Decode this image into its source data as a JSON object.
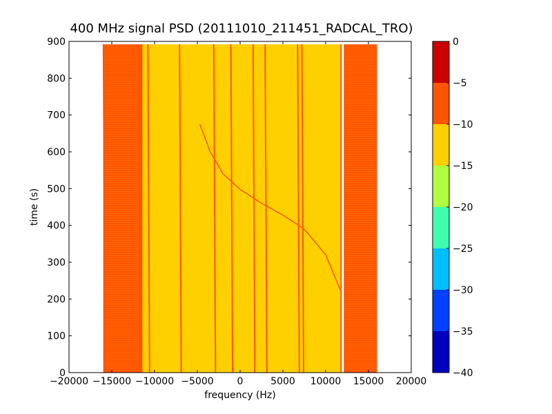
{
  "chart_data": {
    "type": "heatmap",
    "title": "400 MHz signal PSD (20111010_211451_RADCAL_TRO)",
    "xlabel": "frequency (Hz)",
    "ylabel": "time (s)",
    "xlim": [
      -20000,
      20000
    ],
    "ylim": [
      0,
      900
    ],
    "x_ticks": [
      -20000,
      -15000,
      -10000,
      -5000,
      0,
      5000,
      10000,
      15000,
      20000
    ],
    "x_tick_labels": [
      "−20000",
      "−15000",
      "−10000",
      "−5000",
      "0",
      "5000",
      "10000",
      "15000",
      "20000"
    ],
    "y_ticks": [
      0,
      100,
      200,
      300,
      400,
      500,
      600,
      700,
      800,
      900
    ],
    "y_tick_labels": [
      "0",
      "100",
      "200",
      "300",
      "400",
      "500",
      "600",
      "700",
      "800",
      "900"
    ],
    "data_extent": {
      "x": [
        -16000,
        16000
      ],
      "y": [
        0,
        892
      ]
    },
    "band_levels": [
      {
        "x_range": [
          -16000,
          -11500
        ],
        "level": "-10 to -5"
      },
      {
        "x_range": [
          -11500,
          11800
        ],
        "level": "-15 to -10"
      },
      {
        "x_range": [
          12200,
          16000
        ],
        "level": "-10 to -5"
      }
    ],
    "tones_hz": [
      -15900,
      -11800,
      -10700,
      -7000,
      -3000,
      -1000,
      1600,
      3000,
      6800,
      7300
    ],
    "sweep_trace": [
      {
        "x": -4700,
        "y": 675
      },
      {
        "x": -3500,
        "y": 600
      },
      {
        "x": -2000,
        "y": 540
      },
      {
        "x": 0,
        "y": 498
      },
      {
        "x": 2500,
        "y": 460
      },
      {
        "x": 5000,
        "y": 428
      },
      {
        "x": 7500,
        "y": 390
      },
      {
        "x": 10000,
        "y": 320
      },
      {
        "x": 11800,
        "y": 220
      }
    ],
    "colorbar": {
      "min": -40,
      "max": 0,
      "tick_labels": [
        "0",
        "−5",
        "−10",
        "−15",
        "−20",
        "−25",
        "−30",
        "−35",
        "−40"
      ],
      "levels": [
        {
          "from": -40,
          "to": -35,
          "color": "#0000bf"
        },
        {
          "from": -35,
          "to": -30,
          "color": "#0040ff"
        },
        {
          "from": -30,
          "to": -25,
          "color": "#00bfff"
        },
        {
          "from": -25,
          "to": -20,
          "color": "#40ffaf"
        },
        {
          "from": -20,
          "to": -15,
          "color": "#afff40"
        },
        {
          "from": -15,
          "to": -10,
          "color": "#ffd000"
        },
        {
          "from": -10,
          "to": -5,
          "color": "#ff5400"
        },
        {
          "from": -5,
          "to": 0,
          "color": "#cc0000"
        }
      ]
    }
  }
}
